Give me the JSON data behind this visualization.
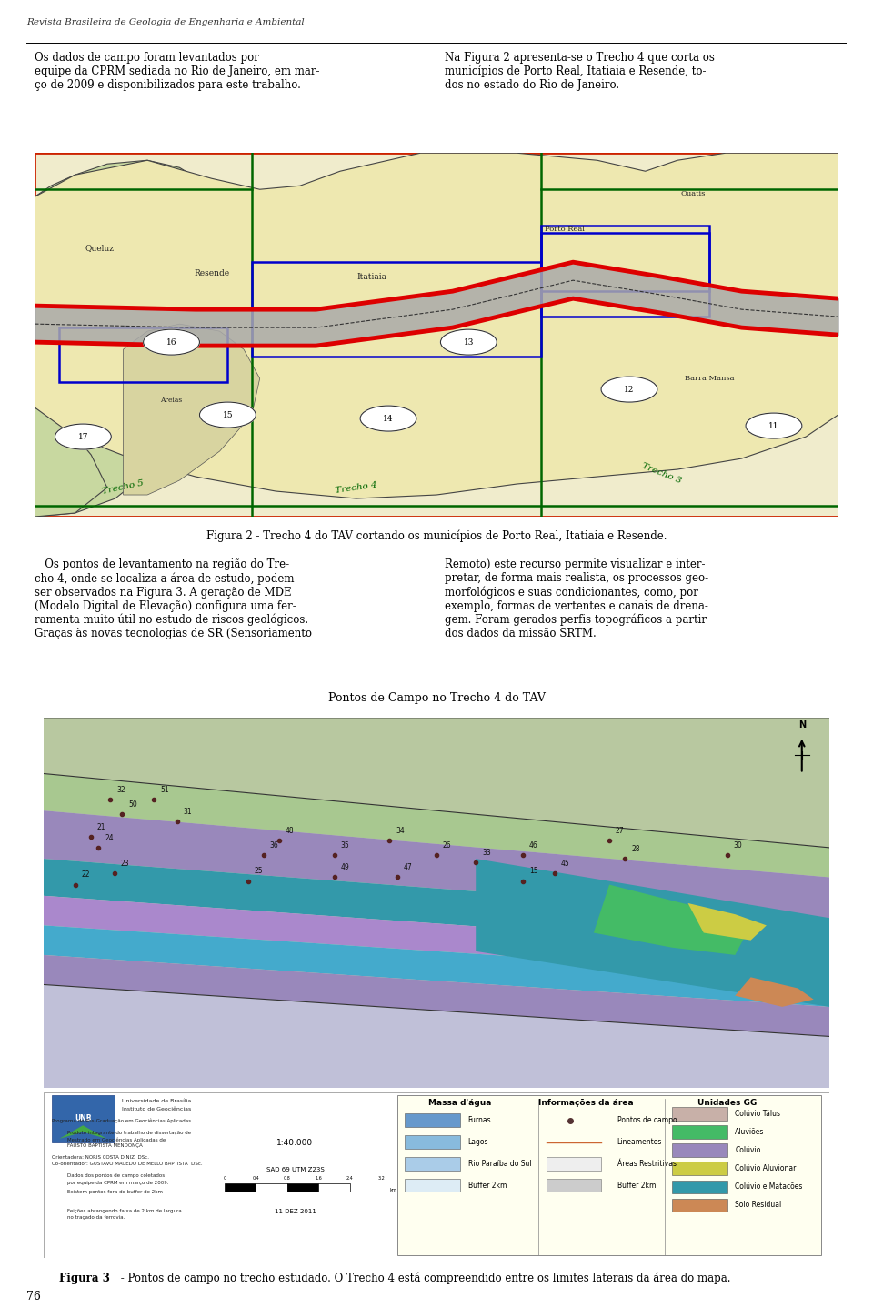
{
  "page_title": "Revista Brasileira de Geologia de Engenharia e Ambiental",
  "page_number": "76",
  "col1_para1": "Os dados de campo foram levantados por\nequipe da CPRM sediada no Rio de Janeiro, em mar-\nço de 2009 e disponibilizados para este trabalho.",
  "col2_para1": "Na Figura 2 apresenta-se o Trecho 4 que corta os\nmunicípios de Porto Real, Itatiaia e Resende, to-\ndos no estado do Rio de Janeiro.",
  "fig2_caption_bold": "Figura 2",
  "fig2_caption_rest": " - Trecho 4 do TAV cortando os municípios de Porto Real, Itatiaia e Resende.",
  "col1_para2": "   Os pontos de levantamento na região do Tre-\ncho 4, onde se localiza a área de estudo, podem\nser observados na Figura 3. A geração de MDE\n(Modelo Digital de Elevação) configura uma fer-\nramenta muito útil no estudo de riscos geológicos.\nGraças às novas tecnologias de SR (Sensoriamento",
  "col2_para2": "Remoto) este recurso permite visualizar e inter-\npretar, de forma mais realista, os processos geo-\nmorfológicos e suas condicionantes, como, por\nexemplo, formas de vertentes e canais de drena-\ngem. Foram gerados perfis topográficos a partir\ndos dados da missão SRTM.",
  "fig3_title": "Pontos de Campo no Trecho 4 do TAV",
  "fig3_caption_bold": "Figura 3",
  "fig3_caption_rest": " - Pontos de campo no trecho estudado. O Trecho 4 está compreendido entre os limites laterais da área do mapa.",
  "background_color": "#ffffff",
  "text_color": "#000000",
  "map1_outer_border": "#cc2200",
  "map1_bg": "#f0eccc",
  "map1_green_region": "#c8d8a0",
  "map1_yellow_region": "#eee8b0",
  "map1_border_blue": "#0000cc",
  "map1_border_green": "#006600",
  "map1_road_red": "#dd0000",
  "map1_road_gray": "#aaaaaa",
  "map2_bg": "#e8e4c8",
  "legend_bg": "#fffff0"
}
